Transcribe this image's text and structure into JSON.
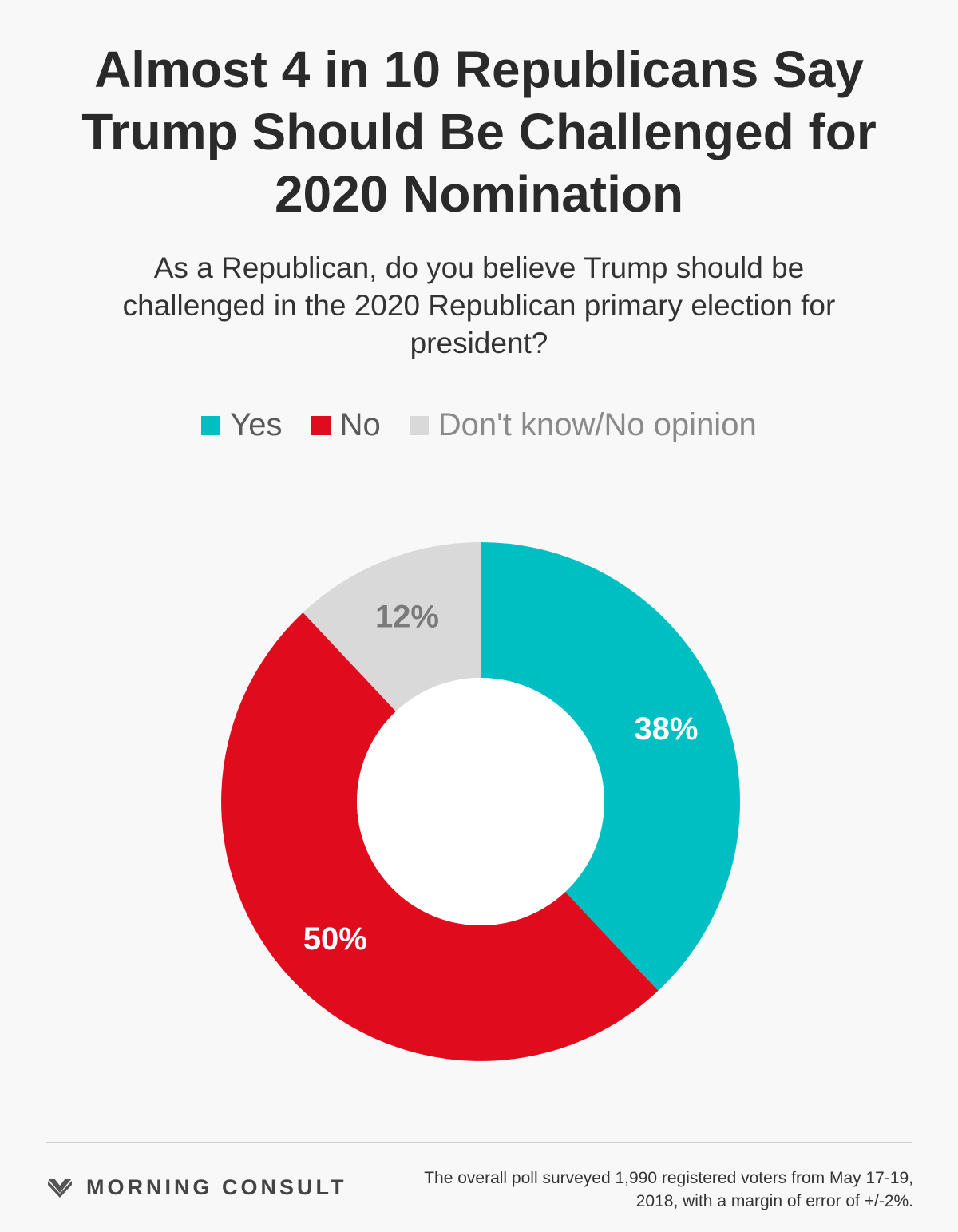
{
  "title": "Almost 4 in 10 Republicans Say Trump Should Be Challenged for 2020 Nomination",
  "subtitle": "As a Republican, do you believe Trump should be challenged in the 2020 Republican primary election for president?",
  "legend": [
    {
      "label": "Yes",
      "color": "#00bfc2"
    },
    {
      "label": "No",
      "color": "#e00b1c"
    },
    {
      "label": "Don't know/No opinion",
      "color": "#d9d9d9"
    }
  ],
  "chart_data": {
    "type": "pie",
    "variant": "donut",
    "categories": [
      "Yes",
      "No",
      "Don't know/No opinion"
    ],
    "values": [
      38,
      50,
      12
    ],
    "labels": [
      "38%",
      "50%",
      "12%"
    ],
    "colors": [
      "#00bfc2",
      "#e00b1c",
      "#d9d9d9"
    ],
    "label_colors": [
      "#ffffff",
      "#ffffff",
      "#7a7a7a"
    ],
    "legend_position": "top",
    "start": "12 o'clock, clockwise"
  },
  "footer": {
    "brand": "MORNING CONSULT",
    "brand_icon": "morning-consult-chevron-logo",
    "note": "The overall poll surveyed 1,990 registered voters from May 17-19, 2018, with a margin of error of +/-2%."
  }
}
